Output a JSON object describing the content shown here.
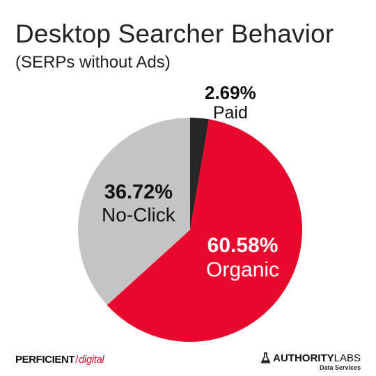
{
  "chart_data": {
    "type": "pie",
    "title": "Desktop Searcher Behavior",
    "subtitle": "(SERPs without Ads)",
    "slices": [
      {
        "label": "Paid",
        "value": 2.69,
        "value_label": "2.69%",
        "color": "#262626"
      },
      {
        "label": "Organic",
        "value": 60.58,
        "value_label": "60.58%",
        "color": "#e8092e"
      },
      {
        "label": "No-Click",
        "value": 36.72,
        "value_label": "36.72%",
        "color": "#c4c4c4"
      }
    ]
  },
  "footer": {
    "left_logo": {
      "brand": "PERFICIENT",
      "sub": "digital",
      "color": "#e8092e"
    },
    "right_logo": {
      "brand_bold": "AUTHORITY",
      "brand_light": "LABS",
      "tagline": "Data Services",
      "icon": "flask-icon"
    }
  }
}
